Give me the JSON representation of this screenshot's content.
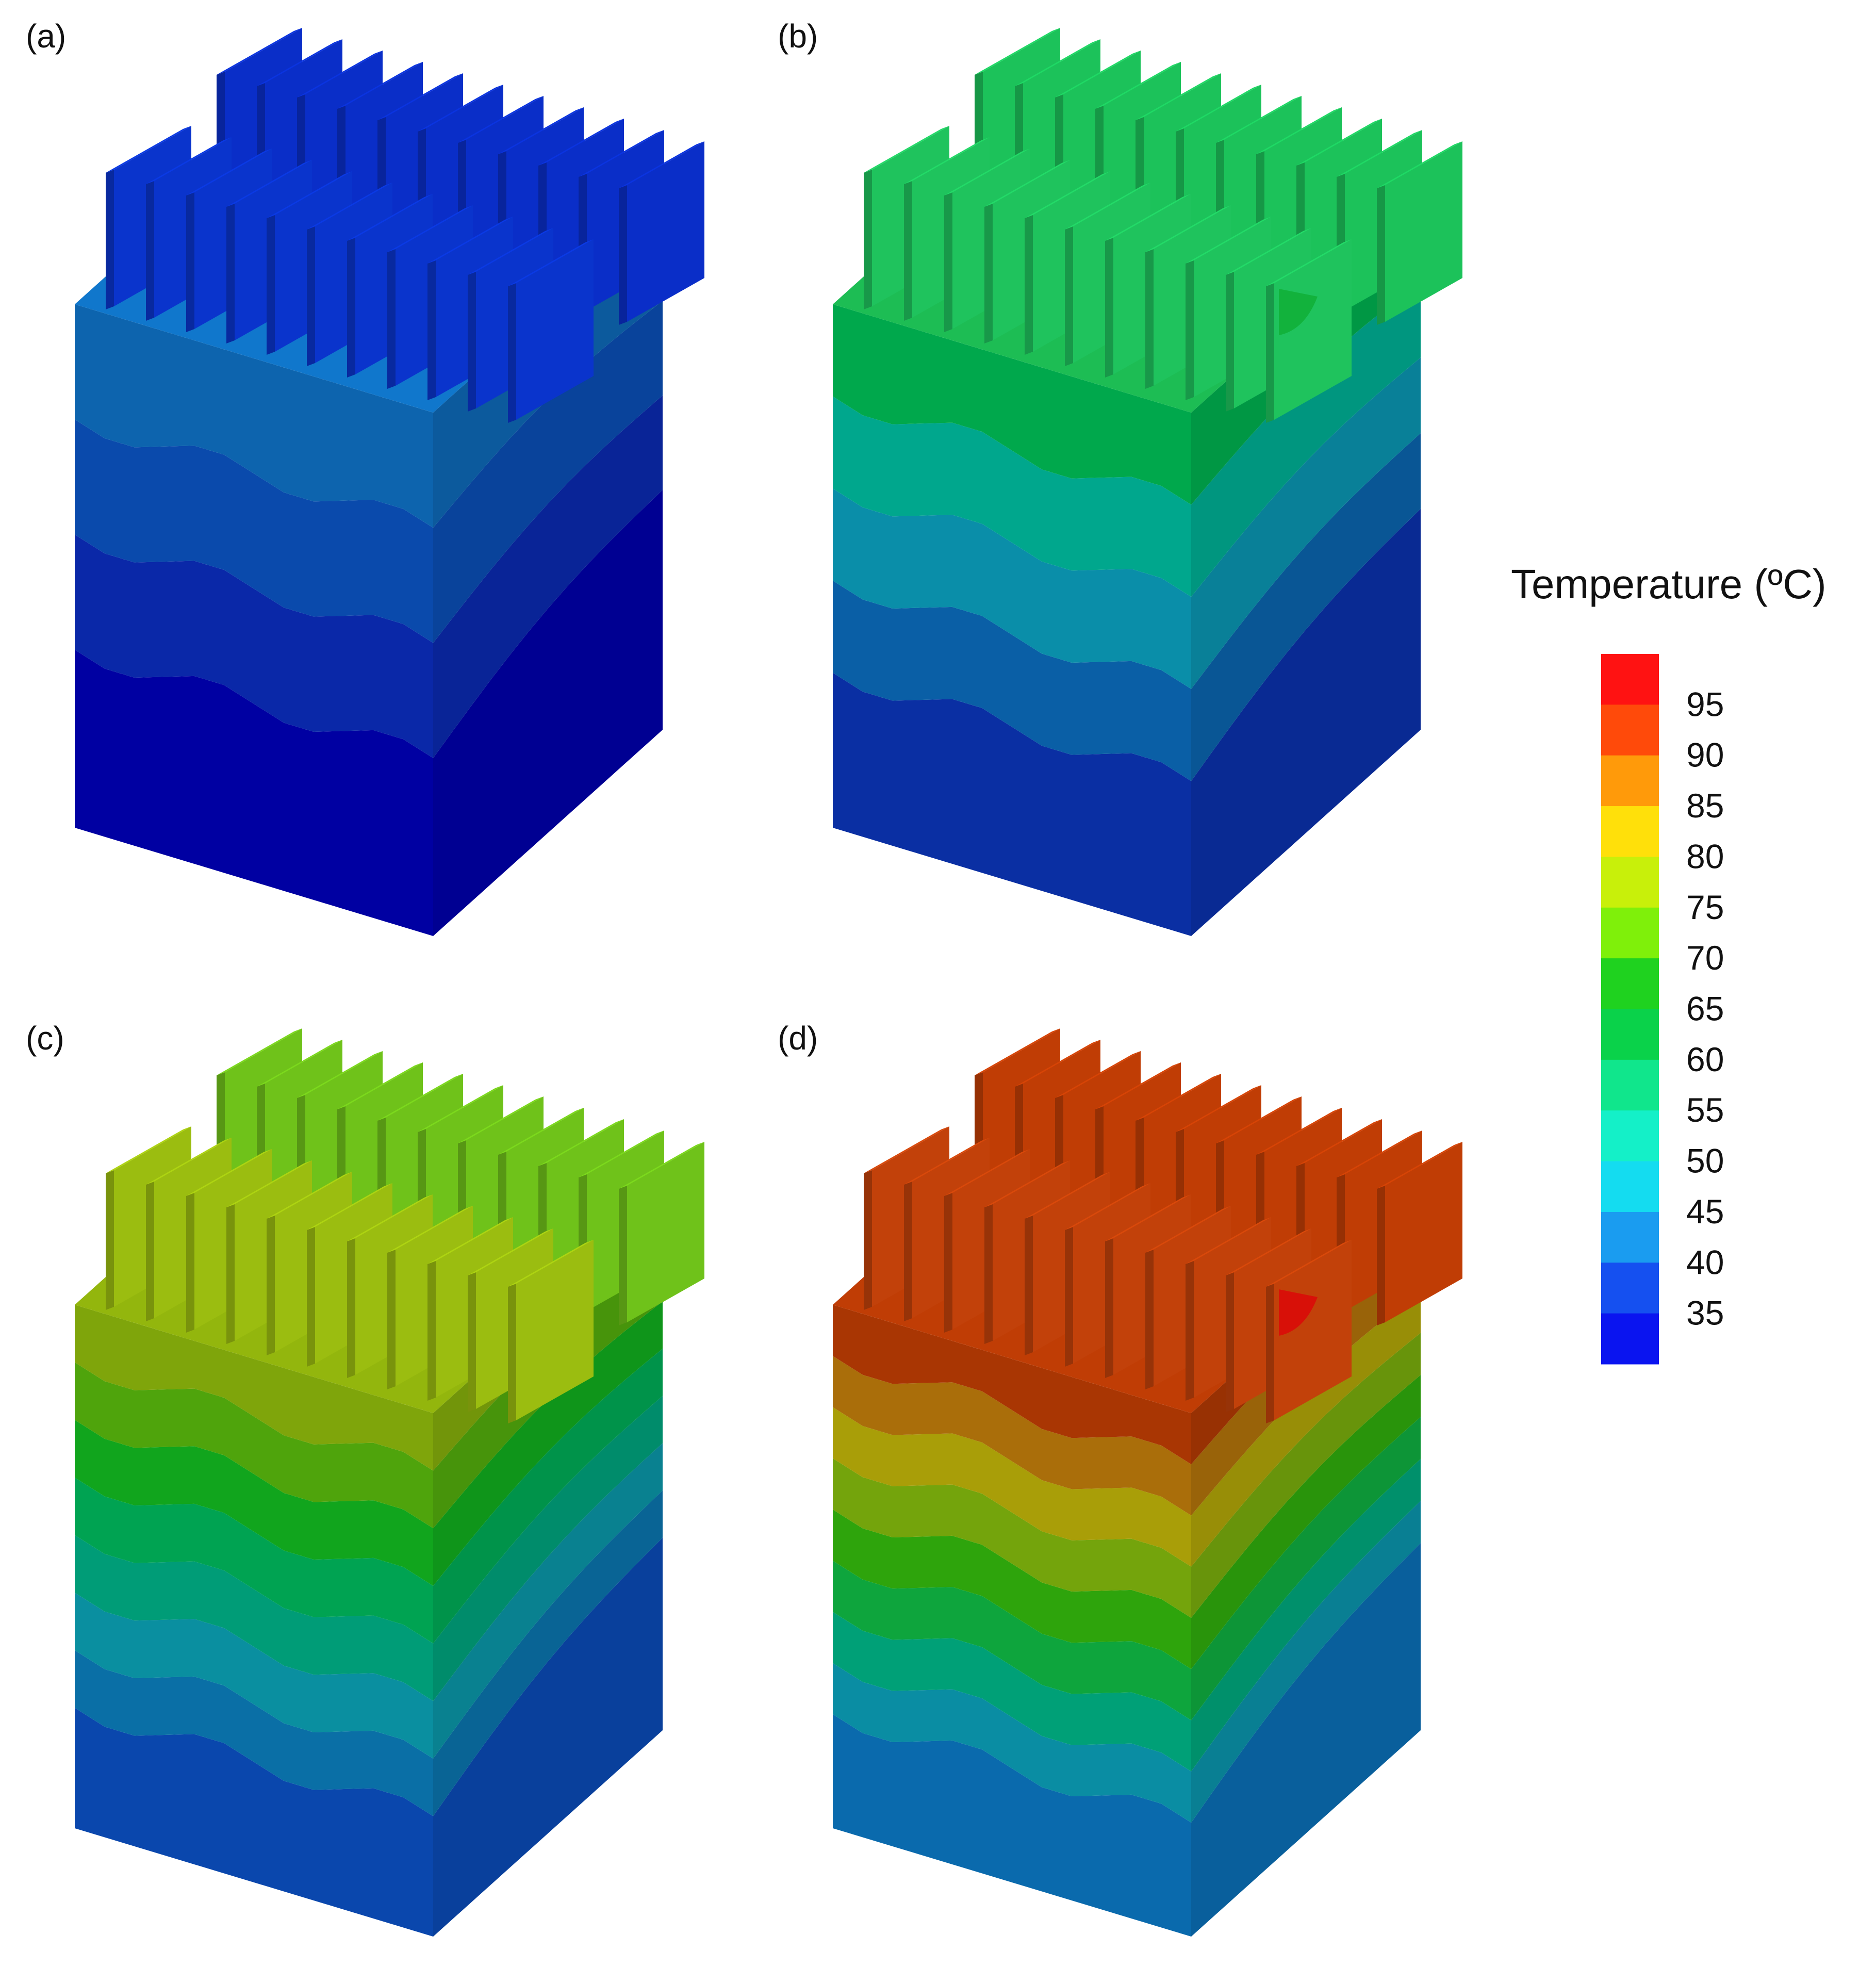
{
  "panels": [
    {
      "label": "(a)",
      "has_hotspot": false,
      "bands": [
        "#0000a2",
        "#0a28a8",
        "#0a4aac",
        "#0d64ae"
      ],
      "fins_back": "#0a2ec8",
      "fins_front": "#0a34cc",
      "top": "#1077cc"
    },
    {
      "label": "(b)",
      "has_hotspot": true,
      "bands": [
        "#0a2fa3",
        "#0a5fa6",
        "#0a8ea9",
        "#00a78d",
        "#00a84c"
      ],
      "fins_back": "#1cc25a",
      "fins_front": "#1fc35d",
      "top": "#1dbd54",
      "hotspot": "#12b23c"
    },
    {
      "label": "(c)",
      "has_hotspot": false,
      "bands": [
        "#0a47ad",
        "#0a6fa6",
        "#0a8fa0",
        "#009c77",
        "#00a352",
        "#11a51d",
        "#4fa40c",
        "#7fa50b"
      ],
      "fins_back": "#6fc21a",
      "fins_front": "#9bbd10",
      "top": "#93b60d"
    },
    {
      "label": "(d)",
      "has_hotspot": true,
      "bands": [
        "#0a6aad",
        "#0a8da3",
        "#00a077",
        "#0ea53d",
        "#2ea40c",
        "#74a40c",
        "#a99e08",
        "#aa6e0a",
        "#a93603"
      ],
      "fins_back": "#c03d05",
      "fins_front": "#c2410a",
      "top": "#c03d05",
      "hotspot": "#d81008"
    }
  ],
  "legend": {
    "title": "Temperature (ºC)",
    "labels": [
      "95",
      "90",
      "85",
      "80",
      "75",
      "70",
      "65",
      "60",
      "55",
      "50",
      "45",
      "40",
      "35"
    ],
    "colors": [
      "#ff1212",
      "#ff4a0a",
      "#ff9a0a",
      "#ffe00a",
      "#c8f00a",
      "#7ff00a",
      "#1fd21f",
      "#0ad24a",
      "#10e68c",
      "#14f0c8",
      "#14dcf0",
      "#1a9cf0",
      "#1550f0",
      "#0a14f0"
    ]
  }
}
